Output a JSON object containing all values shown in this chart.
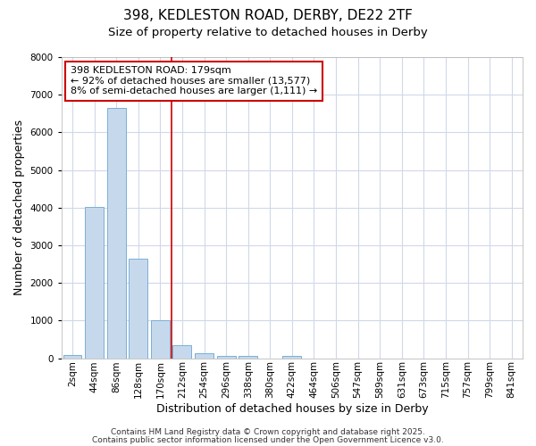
{
  "title_line1": "398, KEDLESTON ROAD, DERBY, DE22 2TF",
  "title_line2": "Size of property relative to detached houses in Derby",
  "xlabel": "Distribution of detached houses by size in Derby",
  "ylabel": "Number of detached properties",
  "bar_labels": [
    "2sqm",
    "44sqm",
    "86sqm",
    "128sqm",
    "170sqm",
    "212sqm",
    "254sqm",
    "296sqm",
    "338sqm",
    "380sqm",
    "422sqm",
    "464sqm",
    "506sqm",
    "547sqm",
    "589sqm",
    "631sqm",
    "673sqm",
    "715sqm",
    "757sqm",
    "799sqm",
    "841sqm"
  ],
  "bar_values": [
    80,
    4020,
    6640,
    2650,
    1000,
    340,
    130,
    70,
    60,
    0,
    60,
    0,
    0,
    0,
    0,
    0,
    0,
    0,
    0,
    0,
    0
  ],
  "bar_color": "#c6d9ec",
  "bar_edgecolor": "#7bafd4",
  "bar_width": 0.85,
  "ylim": [
    0,
    8000
  ],
  "yticks": [
    0,
    1000,
    2000,
    3000,
    4000,
    5000,
    6000,
    7000,
    8000
  ],
  "red_line_x": 4.5,
  "annotation_text": "398 KEDLESTON ROAD: 179sqm\n← 92% of detached houses are smaller (13,577)\n8% of semi-detached houses are larger (1,111) →",
  "annotation_box_color": "#ffffff",
  "annotation_box_edgecolor": "#cc0000",
  "footnote1": "Contains HM Land Registry data © Crown copyright and database right 2025.",
  "footnote2": "Contains public sector information licensed under the Open Government Licence v3.0.",
  "bg_color": "#ffffff",
  "grid_color": "#d0d8e8",
  "title_fontsize": 11,
  "subtitle_fontsize": 9.5,
  "axis_label_fontsize": 9,
  "tick_fontsize": 7.5,
  "annotation_fontsize": 8,
  "footnote_fontsize": 6.5
}
